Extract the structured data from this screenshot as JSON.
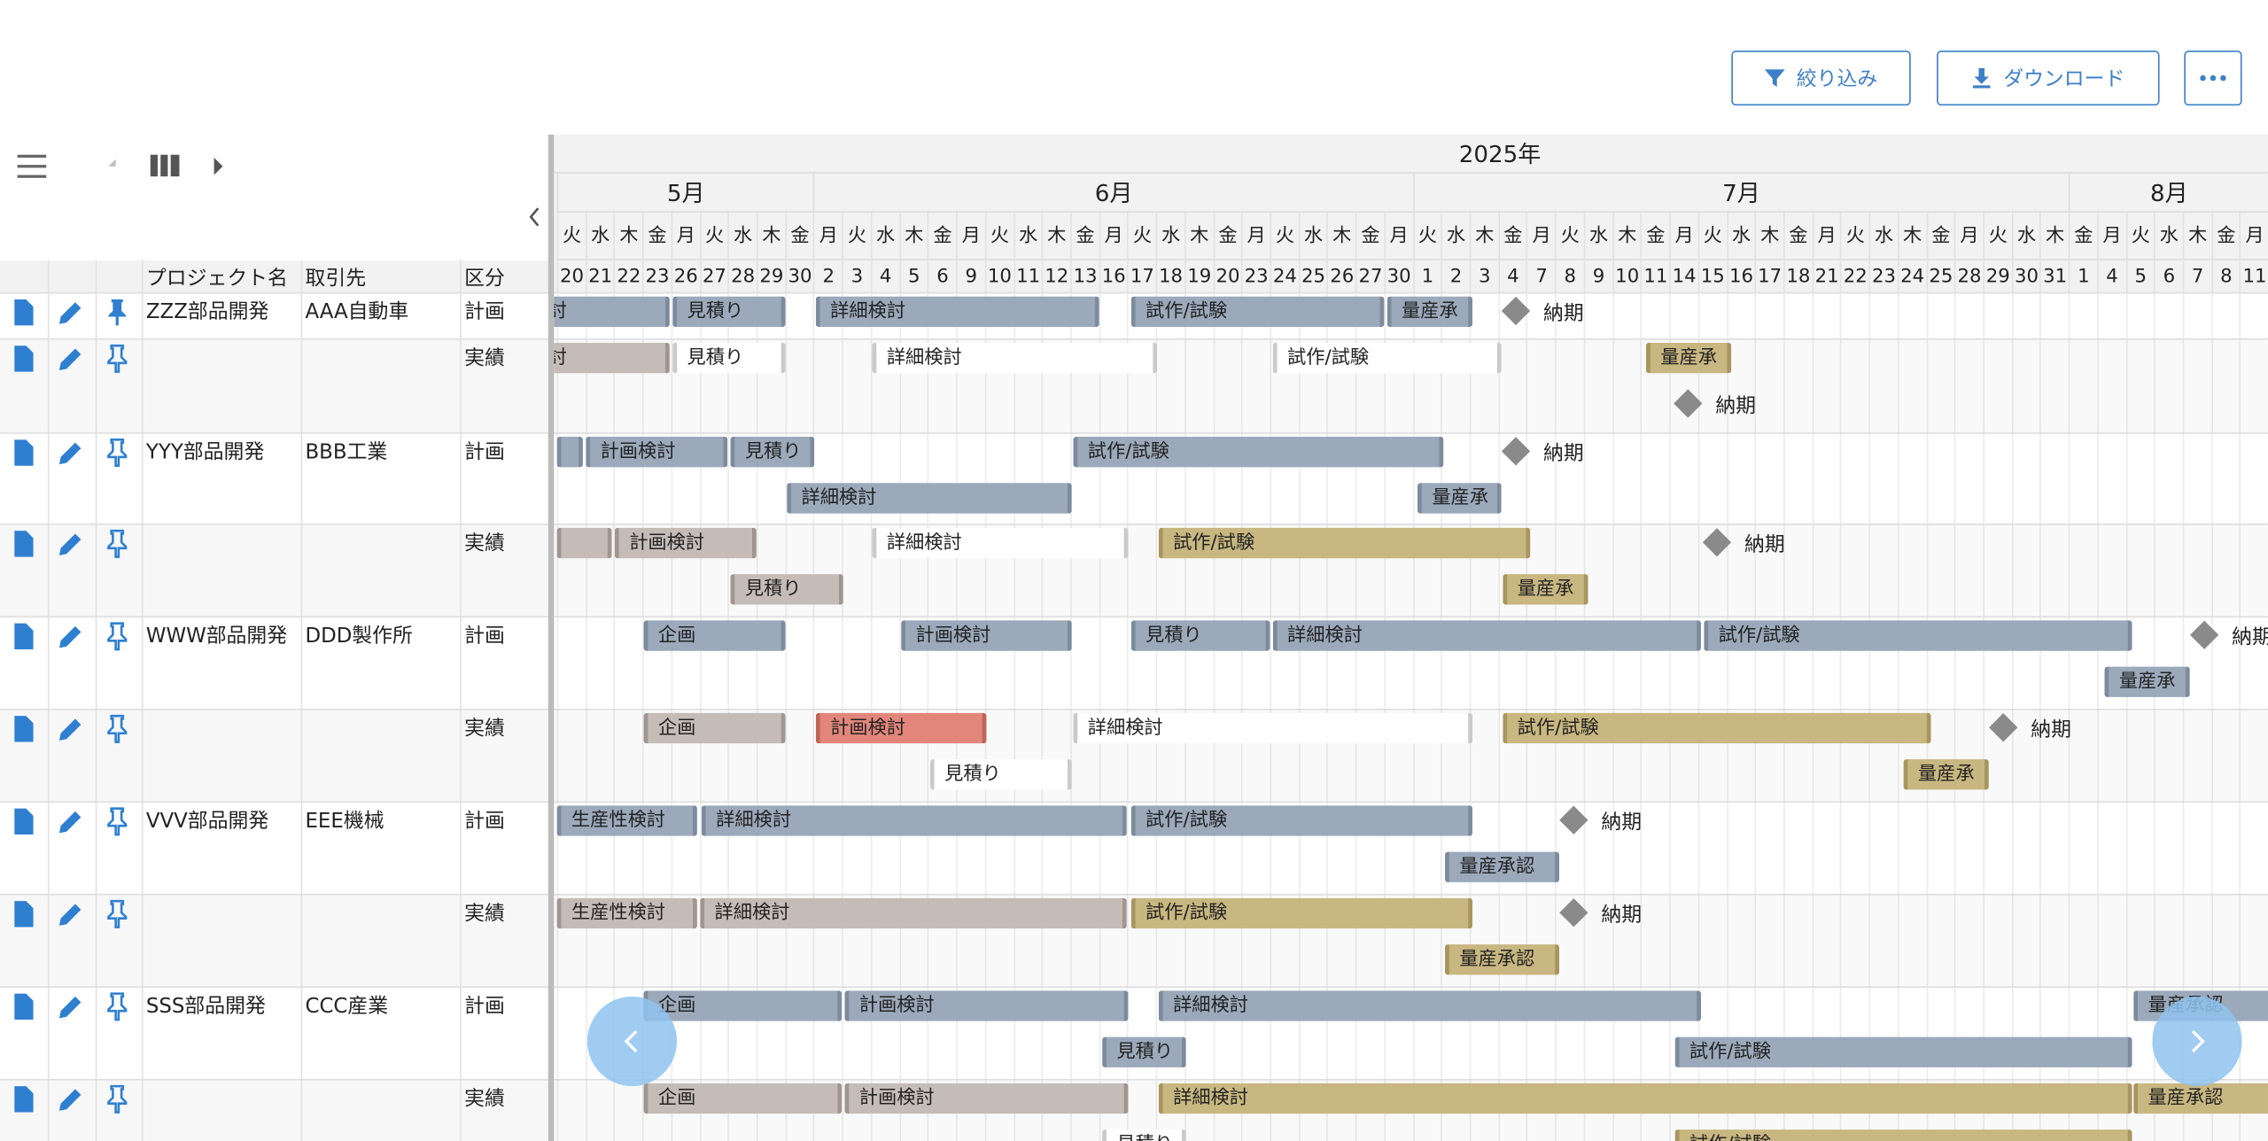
{
  "toolbar": {
    "filter": "絞り込み",
    "download": "ダウンロード"
  },
  "table": {
    "columns": [
      "プロジェクト名",
      "取引先",
      "区分"
    ],
    "rows": [
      {
        "project": "ZZZ部品開発",
        "client": "AAA自動車",
        "kind": "計画",
        "tasks": [
          "計画検討",
          "見積り",
          "詳細検討",
          "試作/試験",
          "量産承",
          "納期"
        ]
      },
      {
        "kind": "実績",
        "tasks": [
          "計画検討",
          "見積り",
          "詳細検討",
          "試作/試験",
          "量産承",
          "納期"
        ]
      },
      {
        "project": "YYY部品開発",
        "client": "BBB工業",
        "kind": "計画",
        "tasks": [
          "計画検討",
          "見積り",
          "試作/試験",
          "納期",
          "詳細検討",
          "量産承"
        ]
      },
      {
        "kind": "実績",
        "tasks": [
          "計画検討",
          "詳細検討",
          "試作/試験",
          "納期",
          "見積り",
          "量産承"
        ]
      },
      {
        "project": "WWW部品開発",
        "client": "DDD製作所",
        "kind": "計画",
        "tasks": [
          "企画",
          "計画検討",
          "見積り",
          "詳細検討",
          "試作/試験",
          "納期",
          "量産承"
        ]
      },
      {
        "kind": "実績",
        "tasks": [
          "企画",
          "計画検討",
          "詳細検討",
          "試作/試験",
          "納期",
          "見積り",
          "量産承"
        ]
      },
      {
        "project": "VVV部品開発",
        "client": "EEE機械",
        "kind": "計画",
        "tasks": [
          "生産性検討",
          "詳細検討",
          "試作/試験",
          "納期",
          "量産承認"
        ]
      },
      {
        "kind": "実績",
        "tasks": [
          "生産性検討",
          "詳細検討",
          "試作/試験",
          "納期",
          "量産承認"
        ]
      },
      {
        "project": "SSS部品開発",
        "client": "CCC産業",
        "kind": "計画",
        "tasks": [
          "企画",
          "計画検討",
          "詳細検討",
          "量産承認",
          "見積り",
          "試作/試験"
        ]
      },
      {
        "kind": "実績",
        "tasks": [
          "企画",
          "計画検討",
          "詳細検討",
          "量産承認",
          "見積り",
          "試作/試験"
        ]
      }
    ]
  },
  "timeline": {
    "year": "2025年",
    "months": [
      {
        "label": "5月",
        "weekdays": [
          "火",
          "水",
          "木",
          "金",
          "月",
          "火",
          "水",
          "木",
          "金"
        ],
        "days": [
          20,
          21,
          22,
          23,
          26,
          27,
          28,
          29,
          30
        ]
      },
      {
        "label": "6月",
        "weekdays": [
          "月",
          "火",
          "水",
          "木",
          "金",
          "月",
          "火",
          "水",
          "木",
          "金",
          "月",
          "火",
          "水",
          "木",
          "金",
          "月",
          "火",
          "水",
          "木",
          "金",
          "月"
        ],
        "days": [
          2,
          3,
          4,
          5,
          6,
          9,
          10,
          11,
          12,
          13,
          16,
          17,
          18,
          19,
          20,
          23,
          24,
          25,
          26,
          27,
          30
        ]
      },
      {
        "label": "7月",
        "weekdays": [
          "火",
          "水",
          "木",
          "金",
          "月",
          "火",
          "水",
          "木",
          "金",
          "月",
          "火",
          "水",
          "木",
          "金",
          "月",
          "火",
          "水",
          "木",
          "金",
          "月",
          "火",
          "水",
          "木"
        ],
        "days": [
          1,
          2,
          3,
          4,
          7,
          8,
          9,
          10,
          11,
          14,
          15,
          16,
          17,
          18,
          21,
          22,
          23,
          24,
          25,
          28,
          29,
          30,
          31
        ]
      },
      {
        "label": "8月",
        "weekdays": [
          "金",
          "月",
          "火",
          "水",
          "木",
          "金",
          "月"
        ],
        "days": [
          1,
          4,
          5,
          6,
          7,
          8,
          11
        ]
      }
    ]
  }
}
